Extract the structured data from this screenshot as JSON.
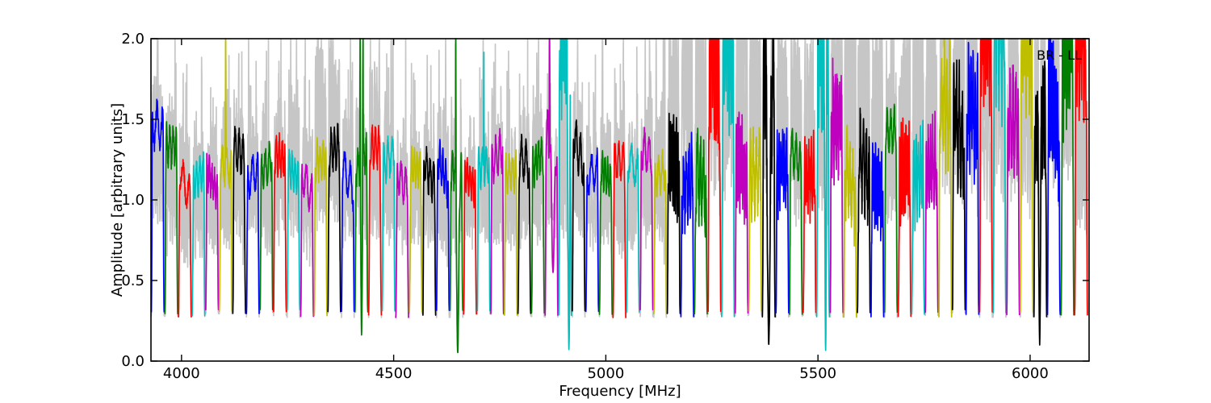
{
  "figure": {
    "background": "#ffffff"
  },
  "chart_data": {
    "type": "line",
    "title": "",
    "annotation": "BR - LL",
    "xlabel": "Frequency [MHz]",
    "ylabel": "Amplitude [arbitrary units]",
    "xlim": [
      3928,
      6139
    ],
    "ylim": [
      0.0,
      2.0
    ],
    "xticks": [
      4000,
      4500,
      5000,
      5500,
      6000
    ],
    "xtick_labels": [
      "4000",
      "4500",
      "5000",
      "5500",
      "6000"
    ],
    "yticks": [
      0.0,
      0.5,
      1.0,
      1.5,
      2.0
    ],
    "ytick_labels": [
      "0.0",
      "0.5",
      "1.0",
      "1.5",
      "2.0"
    ],
    "grid": false,
    "legend": "none",
    "frame_color": "#000000",
    "colors": {
      "b": "#0000ff",
      "g": "#007f00",
      "r": "#ff0000",
      "c": "#00bfbf",
      "m": "#bf00bf",
      "y": "#bfbf00",
      "k": "#000000",
      "gray": "#c6c6c6"
    },
    "band_width_mhz": 30,
    "band_pitch_mhz": 32,
    "baseline_amplitude": 0.28,
    "description": "Per-subband bandpass amplitude spectra; colored traces cycle b,g,r,c,m,y,k; light-gray traces of other scans sit behind each subband, many clipped at the 2.0 axis limit. a = colored peak amplitude, ga = gray peak amplitude, sp = spike positions (fraction of band), spa = spike amplitude, dip = [position, value, width], nz = extra ripple/noise.",
    "segments": [
      {
        "i": 0,
        "f": 3944,
        "c": "b",
        "a": 1.62,
        "ga": 1.72
      },
      {
        "i": 1,
        "f": 3976,
        "c": "g",
        "a": 1.48,
        "ga": 1.58
      },
      {
        "i": 2,
        "f": 4008,
        "c": "r",
        "a": 1.3,
        "ga": 1.4
      },
      {
        "i": 3,
        "f": 4040,
        "c": "c",
        "a": 1.28,
        "ga": 1.38
      },
      {
        "i": 4,
        "f": 4072,
        "c": "m",
        "a": 1.3,
        "ga": 1.42
      },
      {
        "i": 5,
        "f": 4104,
        "c": "y",
        "a": 1.32,
        "ga": 1.5,
        "sp": [
          0.5
        ],
        "spa": 3.2
      },
      {
        "i": 6,
        "f": 4136,
        "c": "k",
        "a": 1.44,
        "ga": 1.55
      },
      {
        "i": 7,
        "f": 4168,
        "c": "b",
        "a": 1.32,
        "ga": 1.62
      },
      {
        "i": 8,
        "f": 4200,
        "c": "g",
        "a": 1.36,
        "ga": 1.52
      },
      {
        "i": 9,
        "f": 4232,
        "c": "r",
        "a": 1.4,
        "ga": 1.5
      },
      {
        "i": 10,
        "f": 4264,
        "c": "c",
        "a": 1.32,
        "ga": 1.75
      },
      {
        "i": 11,
        "f": 4296,
        "c": "m",
        "a": 1.28,
        "ga": 1.45
      },
      {
        "i": 12,
        "f": 4328,
        "c": "y",
        "a": 1.36,
        "ga": 1.9
      },
      {
        "i": 13,
        "f": 4360,
        "c": "k",
        "a": 1.47,
        "ga": 1.95
      },
      {
        "i": 14,
        "f": 4392,
        "c": "b",
        "a": 1.33,
        "ga": 1.55
      },
      {
        "i": 15,
        "f": 4424,
        "c": "g",
        "a": 1.4,
        "ga": 1.6,
        "sp": [
          0.4,
          0.62
        ],
        "spa": 3.2,
        "dip": [
          0.51,
          0.16,
          0.05
        ]
      },
      {
        "i": 16,
        "f": 4456,
        "c": "r",
        "a": 1.46,
        "ga": 1.72
      },
      {
        "i": 17,
        "f": 4488,
        "c": "c",
        "a": 1.42,
        "ga": 1.6
      },
      {
        "i": 18,
        "f": 4520,
        "c": "m",
        "a": 1.28,
        "ga": 1.42
      },
      {
        "i": 19,
        "f": 4552,
        "c": "y",
        "a": 1.3,
        "ga": 1.42
      },
      {
        "i": 20,
        "f": 4584,
        "c": "k",
        "a": 1.34,
        "ga": 1.46
      },
      {
        "i": 21,
        "f": 4616,
        "c": "b",
        "a": 1.4,
        "ga": 1.52
      },
      {
        "i": 22,
        "f": 4648,
        "c": "g",
        "a": 1.34,
        "ga": 1.5,
        "sp": [
          0.45
        ],
        "spa": 3.2,
        "dip": [
          0.6,
          0.05,
          0.08
        ]
      },
      {
        "i": 23,
        "f": 4680,
        "c": "r",
        "a": 1.28,
        "ga": 1.4
      },
      {
        "i": 24,
        "f": 4712,
        "c": "c",
        "a": 1.34,
        "ga": 1.48,
        "sp": [
          0.52
        ],
        "spa": 1.92
      },
      {
        "i": 25,
        "f": 4744,
        "c": "m",
        "a": 1.44,
        "ga": 1.58
      },
      {
        "i": 26,
        "f": 4776,
        "c": "y",
        "a": 1.28,
        "ga": 1.4
      },
      {
        "i": 27,
        "f": 4808,
        "c": "k",
        "a": 1.4,
        "ga": 1.52
      },
      {
        "i": 28,
        "f": 4840,
        "c": "g",
        "a": 1.42,
        "ga": 1.55
      },
      {
        "i": 29,
        "f": 4872,
        "c": "m",
        "a": 1.55,
        "ga": 1.7,
        "sp": [
          0.35
        ],
        "spa": 3.0,
        "dip": [
          0.62,
          0.55,
          0.1
        ]
      },
      {
        "i": 30,
        "f": 4904,
        "c": "c",
        "a": 2.6,
        "ga": 1.8,
        "dip": [
          0.8,
          0.07,
          0.07
        ],
        "nz": 1
      },
      {
        "i": 31,
        "f": 4936,
        "c": "k",
        "a": 1.56,
        "ga": 1.66
      },
      {
        "i": 32,
        "f": 4968,
        "c": "b",
        "a": 1.3,
        "ga": 1.42
      },
      {
        "i": 33,
        "f": 5000,
        "c": "g",
        "a": 1.32,
        "ga": 1.44
      },
      {
        "i": 34,
        "f": 5032,
        "c": "r",
        "a": 1.36,
        "ga": 1.46
      },
      {
        "i": 35,
        "f": 5064,
        "c": "c",
        "a": 1.36,
        "ga": 1.5
      },
      {
        "i": 36,
        "f": 5096,
        "c": "m",
        "a": 1.44,
        "ga": 1.55
      },
      {
        "i": 37,
        "f": 5128,
        "c": "y",
        "a": 1.3,
        "ga": 1.6
      },
      {
        "i": 38,
        "f": 5160,
        "c": "k",
        "a": 1.46,
        "ga": 2.1,
        "nz": 1
      },
      {
        "i": 39,
        "f": 5192,
        "c": "b",
        "a": 1.36,
        "ga": 2.4,
        "nz": 1
      },
      {
        "i": 40,
        "f": 5224,
        "c": "g",
        "a": 1.42,
        "ga": 2.3,
        "nz": 1
      },
      {
        "i": 41,
        "f": 5256,
        "c": "r",
        "a": 2.5,
        "ga": 2.4,
        "nz": 1
      },
      {
        "i": 42,
        "f": 5288,
        "c": "c",
        "a": 2.6,
        "ga": 2.5,
        "nz": 1
      },
      {
        "i": 43,
        "f": 5320,
        "c": "m",
        "a": 1.5,
        "ga": 2.6,
        "nz": 1
      },
      {
        "i": 44,
        "f": 5352,
        "c": "y",
        "a": 1.4,
        "ga": 2.5,
        "nz": 1
      },
      {
        "i": 45,
        "f": 5384,
        "c": "k",
        "a": 2.3,
        "ga": 2.6,
        "dip": [
          0.5,
          0.1,
          0.1
        ],
        "nz": 1
      },
      {
        "i": 46,
        "f": 5416,
        "c": "b",
        "a": 1.38,
        "ga": 2.0,
        "nz": 1
      },
      {
        "i": 47,
        "f": 5448,
        "c": "g",
        "a": 1.45,
        "ga": 1.9
      },
      {
        "i": 48,
        "f": 5480,
        "c": "r",
        "a": 1.35,
        "ga": 2.0,
        "nz": 1
      },
      {
        "i": 49,
        "f": 5512,
        "c": "c",
        "a": 2.5,
        "ga": 2.2,
        "dip": [
          0.7,
          0.06,
          0.05
        ],
        "nz": 1
      },
      {
        "i": 50,
        "f": 5544,
        "c": "m",
        "a": 1.78,
        "ga": 2.4,
        "nz": 1
      },
      {
        "i": 51,
        "f": 5576,
        "c": "y",
        "a": 1.42,
        "ga": 2.2,
        "nz": 1
      },
      {
        "i": 52,
        "f": 5608,
        "c": "k",
        "a": 1.5,
        "ga": 2.3,
        "nz": 1
      },
      {
        "i": 53,
        "f": 5640,
        "c": "b",
        "a": 1.34,
        "ga": 2.0,
        "nz": 1
      },
      {
        "i": 54,
        "f": 5672,
        "c": "g",
        "a": 1.56,
        "ga": 1.85
      },
      {
        "i": 55,
        "f": 5704,
        "c": "r",
        "a": 1.46,
        "ga": 1.95,
        "nz": 1
      },
      {
        "i": 56,
        "f": 5736,
        "c": "c",
        "a": 1.42,
        "ga": 2.05,
        "nz": 1
      },
      {
        "i": 57,
        "f": 5768,
        "c": "m",
        "a": 1.46,
        "ga": 2.2,
        "nz": 1
      },
      {
        "i": 58,
        "f": 5800,
        "c": "y",
        "a": 1.9,
        "ga": 2.4,
        "nz": 1
      },
      {
        "i": 59,
        "f": 5832,
        "c": "k",
        "a": 1.85,
        "ga": 2.5,
        "nz": 1
      },
      {
        "i": 60,
        "f": 5864,
        "c": "b",
        "a": 1.95,
        "ga": 2.6,
        "nz": 1
      },
      {
        "i": 61,
        "f": 5896,
        "c": "r",
        "a": 2.6,
        "ga": 2.4,
        "nz": 1
      },
      {
        "i": 62,
        "f": 5928,
        "c": "c",
        "a": 2.7,
        "ga": 2.5,
        "nz": 1
      },
      {
        "i": 63,
        "f": 5960,
        "c": "m",
        "a": 1.8,
        "ga": 2.3,
        "nz": 1
      },
      {
        "i": 64,
        "f": 5992,
        "c": "y",
        "a": 2.6,
        "ga": 2.4,
        "nz": 1
      },
      {
        "i": 65,
        "f": 6024,
        "c": "k",
        "a": 1.78,
        "ga": 2.5,
        "dip": [
          0.45,
          0.1,
          0.06
        ],
        "nz": 1
      },
      {
        "i": 66,
        "f": 6056,
        "c": "b",
        "a": 2.05,
        "ga": 2.6,
        "nz": 1
      },
      {
        "i": 67,
        "f": 6088,
        "c": "g",
        "a": 2.6,
        "ga": 2.4,
        "nz": 1
      },
      {
        "i": 68,
        "f": 6120,
        "c": "r",
        "a": 2.4,
        "ga": 1.8,
        "nz": 1
      }
    ]
  }
}
